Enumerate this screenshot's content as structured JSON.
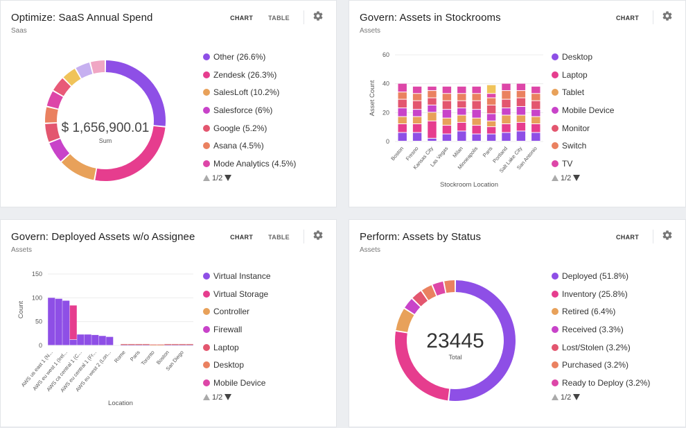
{
  "colors": {
    "purple": "#8e4fe6",
    "pink": "#e63d8e",
    "orange": "#e8a15a",
    "magenta": "#c843c9",
    "red": "#e3566f",
    "coral": "#ea8160",
    "hotpink": "#dd46a8",
    "gold": "#f0c35a",
    "lavender": "#c6b0f0",
    "rose": "#f0a6c4"
  },
  "cards": [
    {
      "title": "Optimize: SaaS Annual Spend",
      "subtitle": "Saas",
      "tabs": [
        "CHART",
        "TABLE"
      ],
      "pager": "1/2"
    },
    {
      "title": "Govern: Assets in Stockrooms",
      "subtitle": "Assets",
      "tabs": [
        "CHART"
      ],
      "pager": "1/2"
    },
    {
      "title": "Govern: Deployed Assets w/o Assignee",
      "subtitle": "Assets",
      "tabs": [
        "CHART",
        "TABLE"
      ],
      "pager": "1/2"
    },
    {
      "title": "Perform: Assets by Status",
      "subtitle": "Assets",
      "tabs": [
        "CHART"
      ],
      "pager": "1/2"
    }
  ],
  "chart_data": [
    {
      "type": "pie",
      "style": "donut",
      "center_value": "$ 1,656,900.01",
      "center_label": "Sum",
      "slices": [
        {
          "label": "Other",
          "pct": "26.6%",
          "value": 26.6,
          "color": "#8e4fe6"
        },
        {
          "label": "Zendesk",
          "pct": "26.3%",
          "value": 26.3,
          "color": "#e63d8e"
        },
        {
          "label": "SalesLoft",
          "pct": "10.2%",
          "value": 10.2,
          "color": "#e8a15a"
        },
        {
          "label": "Salesforce",
          "pct": "6%",
          "value": 6,
          "color": "#c843c9"
        },
        {
          "label": "Google",
          "pct": "5.2%",
          "value": 5.2,
          "color": "#e3566f"
        },
        {
          "label": "Asana",
          "pct": "4.5%",
          "value": 4.5,
          "color": "#ea8160"
        },
        {
          "label": "Mode Analytics",
          "pct": "4.5%",
          "value": 4.5,
          "color": "#dd46a8"
        },
        {
          "label": "",
          "pct": "",
          "value": 4.3,
          "color": "#e85a78"
        },
        {
          "label": "",
          "pct": "",
          "value": 4.1,
          "color": "#f0c35a"
        },
        {
          "label": "",
          "pct": "",
          "value": 4.2,
          "color": "#c6b0f0"
        },
        {
          "label": "",
          "pct": "",
          "value": 4.1,
          "color": "#f0a6c4"
        }
      ]
    },
    {
      "type": "bar",
      "stacked": true,
      "xlabel": "Stockroom Location",
      "ylabel": "Asset Count",
      "ylim": [
        0,
        60
      ],
      "yticks": [
        0,
        20,
        40,
        60
      ],
      "categories": [
        "Boston",
        "Fresno",
        "Kansas City",
        "Las Vegas",
        "Milan",
        "Minneapolis",
        "Paris",
        "Portland",
        "Salt Lake City",
        "San Antonio"
      ],
      "series": [
        {
          "name": "Desktop",
          "color": "#8e4fe6",
          "values": [
            6,
            6,
            2,
            5,
            7,
            5,
            5,
            6,
            7,
            6
          ]
        },
        {
          "name": "Laptop",
          "color": "#e63d8e",
          "values": [
            6,
            6,
            12,
            6,
            6,
            6,
            5,
            6,
            6,
            6
          ]
        },
        {
          "name": "Tablet",
          "color": "#e8a15a",
          "values": [
            5,
            5,
            6,
            5,
            5,
            5,
            4,
            6,
            5,
            5
          ]
        },
        {
          "name": "Mobile Device",
          "color": "#c843c9",
          "values": [
            6,
            5,
            5,
            6,
            5,
            6,
            5,
            5,
            6,
            5
          ]
        },
        {
          "name": "Monitor",
          "color": "#e3566f",
          "values": [
            6,
            6,
            5,
            6,
            5,
            6,
            6,
            6,
            6,
            6
          ]
        },
        {
          "name": "Switch",
          "color": "#ea8160",
          "values": [
            5,
            5,
            5,
            5,
            5,
            5,
            5,
            6,
            5,
            5
          ]
        },
        {
          "name": "TV",
          "color": "#dd46a8",
          "values": [
            6,
            5,
            3,
            5,
            5,
            5,
            3,
            5,
            5,
            5
          ]
        },
        {
          "name": "",
          "color": "#f0c35a",
          "values": [
            0,
            0,
            0,
            0,
            0,
            0,
            6,
            0,
            0,
            0
          ]
        }
      ]
    },
    {
      "type": "bar",
      "stacked": true,
      "xlabel": "Location",
      "ylabel": "Count",
      "ylim": [
        0,
        150
      ],
      "yticks": [
        0,
        50,
        100,
        150
      ],
      "categories": [
        "AWS us east 1 (N...",
        "",
        "AWS eu west 1 (Irel...",
        "",
        "AWS ca central 1 (C...",
        "",
        "AWS eu central 1 (Fr...",
        "",
        "AWS eu west 2 (Lon...",
        "",
        "Rome",
        "",
        "Paris",
        "",
        "Toronto",
        "",
        "Boston",
        "",
        "San Diego",
        ""
      ],
      "series": [
        {
          "name": "Virtual Instance",
          "color": "#8e4fe6",
          "values": [
            100,
            98,
            94,
            12,
            23,
            23,
            22,
            20,
            18,
            0,
            1,
            1,
            1,
            1,
            0,
            0,
            1,
            1,
            1,
            1
          ]
        },
        {
          "name": "Virtual Storage",
          "color": "#e63d8e",
          "values": [
            0,
            0,
            0,
            72,
            0,
            0,
            0,
            0,
            0,
            0,
            0,
            0,
            0,
            0,
            0,
            0,
            0,
            0,
            0,
            0
          ]
        },
        {
          "name": "Controller",
          "color": "#e8a15a",
          "values": [
            0,
            0,
            0,
            0,
            0,
            0,
            0,
            0,
            0,
            0,
            1,
            1,
            1,
            1,
            1,
            1,
            1,
            1,
            1,
            1
          ]
        },
        {
          "name": "Firewall",
          "color": "#c843c9",
          "values": [
            0,
            0,
            0,
            0,
            0,
            0,
            0,
            0,
            0,
            0,
            0,
            0,
            0,
            0,
            0,
            0,
            0,
            0,
            0,
            0
          ]
        },
        {
          "name": "Laptop",
          "color": "#e3566f",
          "values": [
            0,
            0,
            0,
            0,
            0,
            0,
            0,
            0,
            0,
            0,
            1,
            1,
            1,
            1,
            1,
            1,
            1,
            1,
            1,
            1
          ]
        },
        {
          "name": "Desktop",
          "color": "#ea8160",
          "values": [
            0,
            0,
            0,
            0,
            0,
            0,
            0,
            0,
            0,
            0,
            0,
            0,
            0,
            0,
            0,
            0,
            0,
            0,
            0,
            0
          ]
        },
        {
          "name": "Mobile Device",
          "color": "#dd46a8",
          "values": [
            0,
            0,
            0,
            0,
            0,
            0,
            0,
            0,
            0,
            0,
            0,
            0,
            0,
            0,
            0,
            0,
            0,
            0,
            0,
            0
          ]
        }
      ]
    },
    {
      "type": "pie",
      "style": "donut",
      "center_value": "23445",
      "center_label": "Total",
      "slices": [
        {
          "label": "Deployed",
          "pct": "51.8%",
          "value": 51.8,
          "color": "#8e4fe6"
        },
        {
          "label": "Inventory",
          "pct": "25.8%",
          "value": 25.8,
          "color": "#e63d8e"
        },
        {
          "label": "Retired",
          "pct": "6.4%",
          "value": 6.4,
          "color": "#e8a15a"
        },
        {
          "label": "Received",
          "pct": "3.3%",
          "value": 3.3,
          "color": "#c843c9"
        },
        {
          "label": "Lost/Stolen",
          "pct": "3.2%",
          "value": 3.2,
          "color": "#e3566f"
        },
        {
          "label": "Purchased",
          "pct": "3.2%",
          "value": 3.2,
          "color": "#ea8160"
        },
        {
          "label": "Ready to Deploy",
          "pct": "3.2%",
          "value": 3.2,
          "color": "#dd46a8"
        },
        {
          "label": "",
          "pct": "",
          "value": 3.1,
          "color": "#ea8160"
        }
      ]
    }
  ]
}
